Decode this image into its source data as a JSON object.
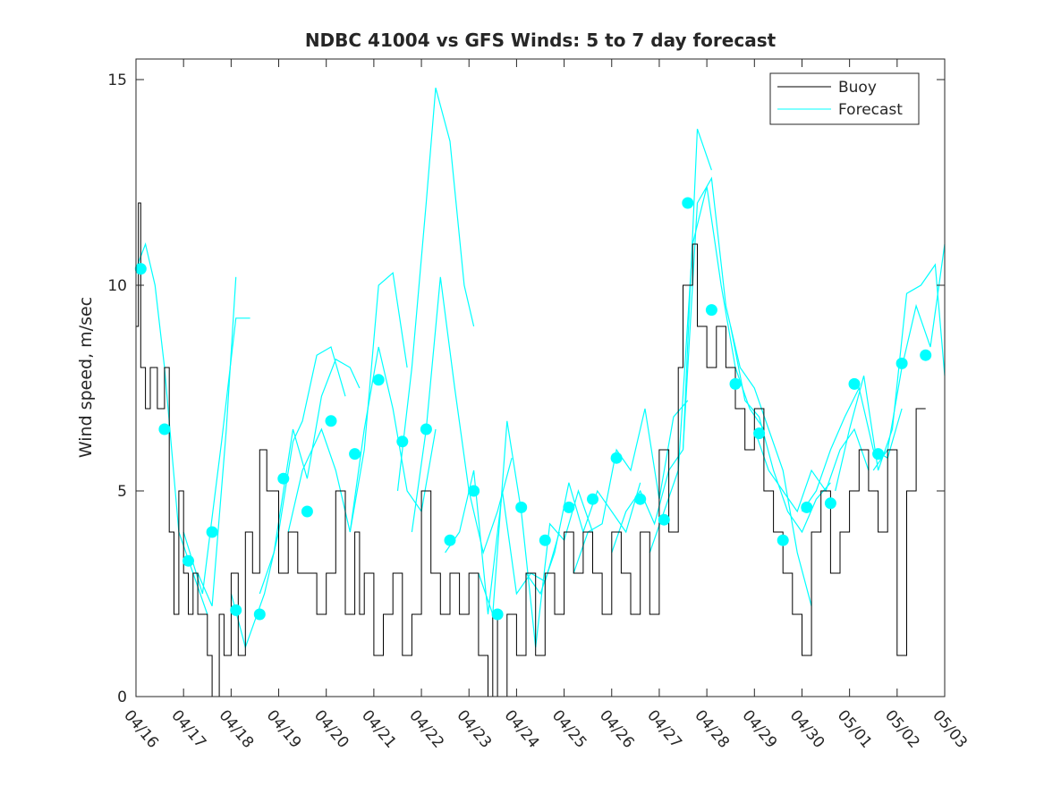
{
  "chart_data": {
    "type": "line",
    "title": "NDBC 41004 vs GFS Winds: 5 to 7 day forecast",
    "xlabel": "",
    "ylabel": "Wind speed, m/sec",
    "xlim": [
      0,
      17
    ],
    "ylim": [
      0,
      15.5
    ],
    "x_ticks": [
      0,
      1,
      2,
      3,
      4,
      5,
      6,
      7,
      8,
      9,
      10,
      11,
      12,
      13,
      14,
      15,
      16,
      17
    ],
    "x_tick_labels": [
      "04/16",
      "04/17",
      "04/18",
      "04/19",
      "04/20",
      "04/21",
      "04/22",
      "04/23",
      "04/24",
      "04/25",
      "04/26",
      "04/27",
      "04/28",
      "04/29",
      "04/30",
      "05/01",
      "05/02",
      "05/03"
    ],
    "y_ticks": [
      0,
      5,
      10,
      15
    ],
    "y_tick_labels": [
      "0",
      "5",
      "10",
      "15"
    ],
    "legend_position": "top-right",
    "legend": [
      {
        "name": "Buoy",
        "color": "#000000"
      },
      {
        "name": "Forecast",
        "color": "#00ffff"
      }
    ],
    "colors": {
      "buoy": "#000000",
      "forecast": "#00ffff",
      "axis": "#262626"
    },
    "series": [
      {
        "name": "Buoy",
        "x_unit": "days since 04/16",
        "x": [
          0,
          0.05,
          0.1,
          0.2,
          0.3,
          0.45,
          0.6,
          0.7,
          0.8,
          0.9,
          1.0,
          1.1,
          1.2,
          1.3,
          1.5,
          1.6,
          1.75,
          1.85,
          2.0,
          2.15,
          2.3,
          2.45,
          2.6,
          2.75,
          3.0,
          3.2,
          3.4,
          3.6,
          3.8,
          4.0,
          4.2,
          4.4,
          4.6,
          4.7,
          4.8,
          5.0,
          5.2,
          5.4,
          5.6,
          5.8,
          6.0,
          6.2,
          6.4,
          6.6,
          6.8,
          7.0,
          7.2,
          7.4,
          7.5,
          7.6,
          7.8,
          8.0,
          8.2,
          8.4,
          8.6,
          8.8,
          9.0,
          9.2,
          9.4,
          9.6,
          9.8,
          10.0,
          10.2,
          10.4,
          10.6,
          10.8,
          11.0,
          11.2,
          11.4,
          11.5,
          11.7,
          11.8,
          12.0,
          12.2,
          12.4,
          12.6,
          12.8,
          13.0,
          13.2,
          13.4,
          13.6,
          13.8,
          14.0,
          14.2,
          14.4,
          14.6,
          14.8,
          15.0,
          15.2,
          15.4,
          15.6,
          15.8,
          16.0,
          16.2,
          16.4
        ],
        "y": [
          9,
          12,
          8,
          7,
          8,
          7,
          8,
          4,
          2,
          5,
          3,
          2,
          3,
          2,
          1,
          0,
          2,
          1,
          3,
          1,
          4,
          3,
          6,
          5,
          3,
          4,
          3,
          3,
          2,
          3,
          5,
          2,
          4,
          2,
          3,
          1,
          2,
          3,
          1,
          2,
          5,
          3,
          2,
          3,
          2,
          3,
          1,
          0,
          2,
          0,
          2,
          1,
          3,
          1,
          3,
          2,
          4,
          3,
          4,
          3,
          2,
          4,
          3,
          2,
          4,
          2,
          6,
          4,
          8,
          10,
          11,
          9,
          8,
          9,
          8,
          7,
          6,
          7,
          5,
          4,
          3,
          2,
          1,
          4,
          5,
          3,
          4,
          5,
          6,
          5,
          4,
          6,
          1,
          5,
          7
        ]
      },
      {
        "name": "Forecast",
        "segments": [
          {
            "x": [
              0,
              0.2,
              0.4,
              0.6,
              0.9,
              1.2,
              1.5
            ],
            "y": [
              10.4,
              11,
              10,
              8,
              4,
              3,
              2
            ]
          },
          {
            "x": [
              1.0,
              1.4,
              1.8,
              2.1,
              2.4
            ],
            "y": [
              4,
              2.5,
              6.2,
              9.2,
              9.2
            ]
          },
          {
            "x": [
              1.3,
              1.6,
              1.9,
              2.1
            ],
            "y": [
              3,
              2.2,
              6.5,
              10.2
            ]
          },
          {
            "x": [
              2.0,
              2.3,
              2.7,
              3.0,
              3.3,
              3.5,
              3.8,
              4.1,
              4.4
            ],
            "y": [
              2.5,
              1.2,
              2.5,
              4,
              6.2,
              6.7,
              8.3,
              8.5,
              7.3
            ]
          },
          {
            "x": [
              2.6,
              2.9,
              3.3,
              3.6,
              3.9,
              4.2,
              4.5,
              4.7
            ],
            "y": [
              2.5,
              3.5,
              6.5,
              5.3,
              7.3,
              8.2,
              8,
              7.5
            ]
          },
          {
            "x": [
              3.2,
              3.5,
              3.9,
              4.2,
              4.5,
              4.8,
              5.1,
              5.4,
              5.7
            ],
            "y": [
              4,
              5.5,
              6.5,
              5.5,
              4,
              6,
              10,
              10.3,
              8
            ]
          },
          {
            "x": [
              4.5,
              4.8,
              5.1,
              5.4,
              5.7,
              6.0,
              6.3
            ],
            "y": [
              4,
              6.5,
              8.5,
              7,
              5,
              4.5,
              6.5
            ]
          },
          {
            "x": [
              5.5,
              5.8,
              6.1,
              6.3,
              6.6,
              6.9,
              7.1
            ],
            "y": [
              5,
              8,
              12,
              14.8,
              13.5,
              10,
              9
            ]
          },
          {
            "x": [
              5.8,
              6.1,
              6.4,
              6.7,
              7.0,
              7.3,
              7.6,
              7.9
            ],
            "y": [
              4,
              6.5,
              10.2,
              7.5,
              5,
              3.5,
              4.5,
              5.8
            ]
          },
          {
            "x": [
              6.5,
              6.8,
              7.1,
              7.4,
              7.7,
              8.0,
              8.3,
              8.6,
              8.9
            ],
            "y": [
              3.5,
              4,
              5.5,
              2,
              5,
              2.5,
              3,
              2.8,
              4
            ]
          },
          {
            "x": [
              7.2,
              7.5,
              7.8,
              8.1,
              8.4,
              8.7,
              9.0,
              9.3,
              9.6
            ],
            "y": [
              3,
              2,
              6.7,
              4.5,
              1.2,
              4.2,
              3.8,
              5,
              4
            ]
          },
          {
            "x": [
              8.2,
              8.5,
              8.8,
              9.1,
              9.4,
              9.7,
              10.0,
              10.3,
              10.6
            ],
            "y": [
              3,
              2.5,
              3.5,
              5.2,
              4,
              5,
              4.5,
              4,
              5.2
            ]
          },
          {
            "x": [
              9.2,
              9.5,
              9.8,
              10.1,
              10.4,
              10.7,
              11.0,
              11.3,
              11.6
            ],
            "y": [
              3,
              4,
              4.2,
              6,
              5.5,
              7,
              4.8,
              6.8,
              7.2
            ]
          },
          {
            "x": [
              10.0,
              10.3,
              10.6,
              10.9,
              11.2,
              11.5,
              11.8,
              12.1
            ],
            "y": [
              3.5,
              4.5,
              5,
              4.2,
              5.5,
              6,
              13.8,
              12.8
            ]
          },
          {
            "x": [
              10.8,
              11.1,
              11.4,
              11.7,
              12.0,
              12.3,
              12.6,
              12.9,
              13.2
            ],
            "y": [
              3.5,
              4.5,
              5.5,
              11,
              12.4,
              10,
              8,
              7,
              6.5
            ]
          },
          {
            "x": [
              11.5,
              11.8,
              12.1,
              12.4,
              12.7,
              13.0,
              13.3,
              13.6,
              13.9,
              14.2
            ],
            "y": [
              6,
              12,
              12.6,
              9.5,
              8,
              7.5,
              6.5,
              5.5,
              3.5,
              2.2
            ]
          },
          {
            "x": [
              12.5,
              12.8,
              13.1,
              13.4,
              13.7,
              14.0,
              14.3,
              14.6
            ],
            "y": [
              9,
              7.2,
              6.8,
              5.5,
              4.5,
              4,
              4.8,
              5.2
            ]
          },
          {
            "x": [
              13.0,
              13.3,
              13.6,
              13.9,
              14.2,
              14.5,
              14.8,
              15.1,
              15.4
            ],
            "y": [
              6.5,
              5.5,
              5,
              4.5,
              5.5,
              5,
              6,
              6.5,
              5.5
            ]
          },
          {
            "x": [
              14.0,
              14.3,
              14.6,
              14.9,
              15.2,
              15.5,
              15.8,
              16.1
            ],
            "y": [
              4.5,
              5,
              6,
              6.8,
              7.5,
              6,
              5.8,
              7
            ]
          },
          {
            "x": [
              14.7,
              15.0,
              15.3,
              15.6,
              15.9,
              16.2,
              16.5,
              16.8,
              17.0
            ],
            "y": [
              5,
              6.5,
              7.8,
              5.5,
              6.5,
              9.8,
              10,
              10.5,
              7.8
            ]
          },
          {
            "x": [
              15.5,
              15.8,
              16.1,
              16.4,
              16.7,
              17.0
            ],
            "y": [
              5.5,
              6,
              8,
              9.5,
              8.5,
              11
            ]
          }
        ]
      },
      {
        "name": "Forecast",
        "role": "daily markers",
        "x": [
          0.1,
          0.6,
          1.1,
          1.6,
          2.1,
          2.6,
          3.1,
          3.6,
          4.1,
          4.6,
          5.1,
          5.6,
          6.1,
          6.6,
          7.1,
          7.6,
          8.1,
          8.6,
          9.1,
          9.6,
          10.1,
          10.6,
          11.1,
          11.6,
          12.1,
          12.6,
          13.1,
          13.6,
          14.1,
          14.6,
          15.1,
          15.6,
          16.1,
          16.6
        ],
        "y": [
          10.4,
          6.5,
          3.3,
          4.0,
          2.1,
          2.0,
          5.3,
          4.5,
          6.7,
          5.9,
          7.7,
          6.2,
          6.5,
          3.8,
          5.0,
          2.0,
          4.6,
          3.8,
          4.6,
          4.8,
          5.8,
          4.8,
          4.3,
          12.0,
          9.4,
          7.6,
          6.4,
          3.8,
          4.6,
          4.7,
          7.6,
          5.9,
          8.1,
          8.3
        ]
      }
    ]
  }
}
